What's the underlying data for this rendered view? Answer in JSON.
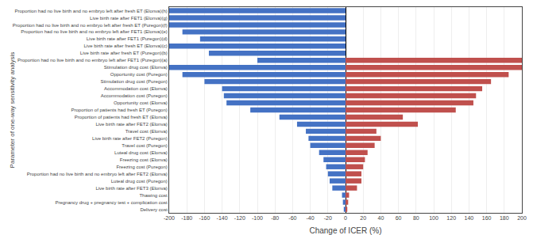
{
  "chart_data": {
    "type": "bar",
    "orientation": "horizontal",
    "xlabel": "Change of ICER (%)",
    "ylabel": "Parameter of one-way sensitivity analysis",
    "categories": [
      "Proportion had no live birth and no embryo left after fresh ET (Elonva)(h)",
      "Live birth rate after FET1 (Elonva)(g)",
      "Proportion had no live birth and no embryo left after fresh ET (Puregon)(f)",
      "Proportion had no live birth and no embryo left after FET1 (Elonva)(e)",
      "Live birth rate after FET1 (Puregon)(d)",
      "Live birth rate after fresh ET (Elonva)(c)",
      "Live birth rate after fresh ET (Puregon)(b)",
      "Proportion had no live birth and no embryo left after FET1 (Puregon)(a)",
      "Stimulation drug cost (Elonva)",
      "Opportunity cost (Puregon)",
      "Stimulation drug cost (Puregon)",
      "Accommodation cost (Elonva)",
      "Accommodation cost (Puregon)",
      "Opportunity cost (Elonva)",
      "Proportion of patients had fresh ET (Puregon)",
      "Proportion of patients had fresh ET (Elonva)",
      "Live birth rate after FET2 (Elonva)",
      "Travel cost (Elonva)",
      "Live birth rate after FET2 (Puregon)",
      "Travel cost (Puregon)",
      "Luteal drug cost (Elonva)",
      "Freezing cost (Elonva)",
      "Freezing cost (Puregon)",
      "Proportion had no live birth and no embryo left after FET2 (Elonva)",
      "Luteal drug cost (Puregon)",
      "Live birth rate after FET3 (Elonva)",
      "Thawing cost",
      "Pregnancy drug + pregnancy test + complication cost",
      "Delivery cost"
    ],
    "series": [
      {
        "color": "#4472c4",
        "values": [
          -200,
          -200,
          -200,
          -185,
          -165,
          -200,
          -155,
          -100,
          -200,
          -185,
          -160,
          -140,
          -138,
          -135,
          -108,
          -75,
          -55,
          -45,
          -42,
          -40,
          -30,
          -25,
          -22,
          -20,
          -18,
          -15,
          -4,
          -3,
          -2
        ]
      },
      {
        "color": "#c0504d",
        "values": [
          0,
          0,
          0,
          0,
          0,
          0,
          0,
          200,
          200,
          185,
          165,
          155,
          148,
          145,
          125,
          65,
          82,
          35,
          40,
          33,
          25,
          22,
          20,
          18,
          18,
          13,
          4,
          3,
          2
        ]
      }
    ],
    "xlim": [
      -200,
      200
    ],
    "xticks": [
      -200,
      -180,
      -160,
      -140,
      -120,
      -100,
      -80,
      -60,
      -40,
      -20,
      0,
      20,
      40,
      60,
      80,
      100,
      120,
      140,
      160,
      180,
      200
    ],
    "grid": true
  }
}
